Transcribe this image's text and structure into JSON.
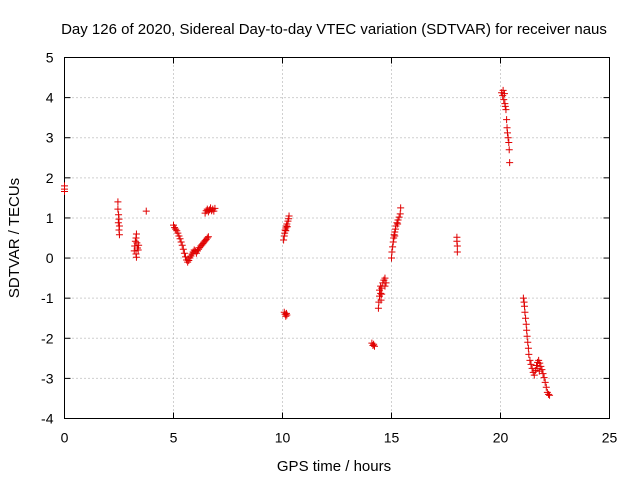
{
  "chart_data": {
    "type": "scatter",
    "title": "Day 126 of 2020, Sidereal Day-to-day VTEC variation (SDTVAR) for receiver naus",
    "xlabel": "GPS time / hours",
    "ylabel": "SDTVAR / TECUs",
    "xlim": [
      0,
      25
    ],
    "ylim": [
      -4,
      5
    ],
    "xticks": [
      0,
      5,
      10,
      15,
      20,
      25
    ],
    "yticks": [
      -4,
      -3,
      -2,
      -1,
      0,
      1,
      2,
      3,
      4,
      5
    ],
    "grid": true,
    "marker": "+",
    "color": "#e00000",
    "series": [
      {
        "points": [
          [
            0.0,
            1.8
          ],
          [
            0.0,
            1.72
          ],
          [
            0.0,
            1.66
          ],
          [
            2.45,
            1.4
          ],
          [
            2.45,
            1.22
          ],
          [
            2.48,
            1.08
          ],
          [
            2.5,
            0.97
          ],
          [
            2.47,
            0.88
          ],
          [
            2.52,
            0.8
          ],
          [
            2.5,
            0.7
          ],
          [
            2.52,
            0.58
          ],
          [
            3.3,
            0.6
          ],
          [
            3.28,
            0.5
          ],
          [
            3.25,
            0.42
          ],
          [
            3.32,
            0.38
          ],
          [
            3.22,
            0.3
          ],
          [
            3.35,
            0.25
          ],
          [
            3.2,
            0.18
          ],
          [
            3.28,
            0.1
          ],
          [
            3.3,
            0.02
          ],
          [
            3.38,
            0.2
          ],
          [
            3.4,
            0.32
          ],
          [
            3.75,
            1.17
          ],
          [
            5.0,
            0.82
          ],
          [
            5.05,
            0.76
          ],
          [
            5.1,
            0.72
          ],
          [
            5.15,
            0.68
          ],
          [
            5.2,
            0.62
          ],
          [
            5.25,
            0.55
          ],
          [
            5.3,
            0.48
          ],
          [
            5.35,
            0.4
          ],
          [
            5.4,
            0.32
          ],
          [
            5.45,
            0.22
          ],
          [
            5.5,
            0.12
          ],
          [
            5.55,
            0.03
          ],
          [
            5.6,
            -0.05
          ],
          [
            5.65,
            -0.1
          ],
          [
            5.7,
            -0.06
          ],
          [
            5.75,
            0.0
          ],
          [
            5.8,
            0.05
          ],
          [
            5.85,
            0.1
          ],
          [
            5.9,
            0.15
          ],
          [
            5.95,
            0.2
          ],
          [
            6.0,
            0.18
          ],
          [
            6.05,
            0.12
          ],
          [
            6.1,
            0.18
          ],
          [
            6.15,
            0.22
          ],
          [
            6.2,
            0.26
          ],
          [
            6.25,
            0.3
          ],
          [
            6.3,
            0.33
          ],
          [
            6.35,
            0.36
          ],
          [
            6.4,
            0.4
          ],
          [
            6.45,
            0.43
          ],
          [
            6.5,
            0.46
          ],
          [
            6.55,
            0.5
          ],
          [
            6.6,
            0.53
          ],
          [
            6.45,
            1.12
          ],
          [
            6.5,
            1.18
          ],
          [
            6.55,
            1.22
          ],
          [
            6.6,
            1.15
          ],
          [
            6.65,
            1.2
          ],
          [
            6.7,
            1.25
          ],
          [
            6.75,
            1.18
          ],
          [
            6.8,
            1.22
          ],
          [
            6.85,
            1.17
          ],
          [
            6.9,
            1.24
          ],
          [
            10.05,
            0.45
          ],
          [
            10.08,
            0.55
          ],
          [
            10.1,
            0.62
          ],
          [
            10.12,
            0.7
          ],
          [
            10.15,
            0.75
          ],
          [
            10.18,
            0.8
          ],
          [
            10.2,
            0.85
          ],
          [
            10.25,
            0.92
          ],
          [
            10.28,
            0.98
          ],
          [
            10.3,
            1.05
          ],
          [
            10.22,
            0.78
          ],
          [
            10.15,
            0.68
          ],
          [
            10.08,
            -1.35
          ],
          [
            10.12,
            -1.4
          ],
          [
            10.15,
            -1.45
          ],
          [
            10.18,
            -1.38
          ],
          [
            10.2,
            -1.42
          ],
          [
            14.1,
            -2.12
          ],
          [
            14.15,
            -2.18
          ],
          [
            14.18,
            -2.15
          ],
          [
            14.22,
            -2.2
          ],
          [
            14.4,
            -1.25
          ],
          [
            14.42,
            -1.1
          ],
          [
            14.45,
            -0.95
          ],
          [
            14.45,
            -0.8
          ],
          [
            14.5,
            -0.7
          ],
          [
            14.5,
            -0.88
          ],
          [
            14.55,
            -0.75
          ],
          [
            14.6,
            -0.62
          ],
          [
            14.65,
            -0.55
          ],
          [
            14.7,
            -0.5
          ],
          [
            14.75,
            -0.62
          ],
          [
            14.7,
            -0.7
          ],
          [
            14.55,
            -0.9
          ],
          [
            14.52,
            -1.05
          ],
          [
            15.0,
            0.0
          ],
          [
            15.02,
            0.15
          ],
          [
            15.05,
            0.28
          ],
          [
            15.08,
            0.4
          ],
          [
            15.1,
            0.5
          ],
          [
            15.12,
            0.58
          ],
          [
            15.15,
            0.65
          ],
          [
            15.18,
            0.72
          ],
          [
            15.2,
            0.8
          ],
          [
            15.25,
            0.88
          ],
          [
            15.3,
            0.95
          ],
          [
            15.35,
            1.02
          ],
          [
            15.4,
            1.1
          ],
          [
            15.42,
            1.25
          ],
          [
            15.28,
            0.85
          ],
          [
            15.15,
            0.55
          ],
          [
            18.0,
            0.52
          ],
          [
            18.0,
            0.42
          ],
          [
            18.02,
            0.3
          ],
          [
            18.02,
            0.15
          ],
          [
            20.05,
            4.12
          ],
          [
            20.1,
            4.05
          ],
          [
            20.12,
            4.18
          ],
          [
            20.15,
            3.95
          ],
          [
            20.18,
            4.1
          ],
          [
            20.2,
            3.85
          ],
          [
            20.22,
            3.78
          ],
          [
            20.25,
            3.7
          ],
          [
            20.28,
            3.45
          ],
          [
            20.3,
            3.25
          ],
          [
            20.32,
            3.12
          ],
          [
            20.35,
            3.0
          ],
          [
            20.38,
            2.88
          ],
          [
            20.4,
            2.7
          ],
          [
            20.42,
            2.38
          ],
          [
            21.05,
            -1.0
          ],
          [
            21.08,
            -1.1
          ],
          [
            21.1,
            -1.2
          ],
          [
            21.12,
            -1.35
          ],
          [
            21.15,
            -1.5
          ],
          [
            21.18,
            -1.65
          ],
          [
            21.2,
            -1.8
          ],
          [
            21.22,
            -1.95
          ],
          [
            21.25,
            -2.1
          ],
          [
            21.28,
            -2.25
          ],
          [
            21.3,
            -2.4
          ],
          [
            21.35,
            -2.55
          ],
          [
            21.4,
            -2.65
          ],
          [
            21.45,
            -2.75
          ],
          [
            21.5,
            -2.85
          ],
          [
            21.55,
            -2.92
          ],
          [
            21.6,
            -2.8
          ],
          [
            21.65,
            -2.68
          ],
          [
            21.7,
            -2.6
          ],
          [
            21.75,
            -2.55
          ],
          [
            21.8,
            -2.62
          ],
          [
            21.85,
            -2.7
          ],
          [
            21.9,
            -2.78
          ],
          [
            21.95,
            -2.88
          ],
          [
            22.0,
            -2.98
          ],
          [
            22.05,
            -3.1
          ],
          [
            22.1,
            -3.22
          ],
          [
            22.15,
            -3.35
          ],
          [
            22.2,
            -3.4
          ],
          [
            22.25,
            -3.42
          ],
          [
            21.68,
            -2.75
          ],
          [
            21.78,
            -2.82
          ]
        ]
      }
    ]
  }
}
